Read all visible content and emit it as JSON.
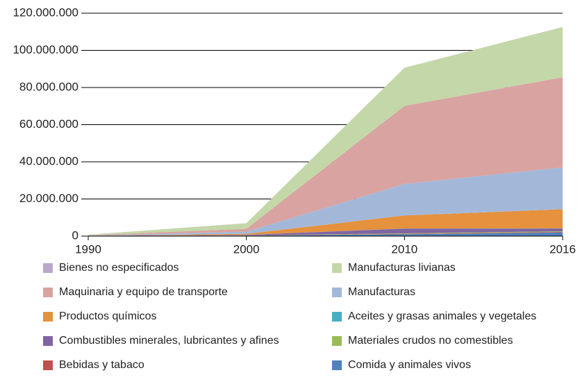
{
  "chart_data": {
    "type": "stacked_area",
    "categories": [
      "1990",
      "2000",
      "2010",
      "2016"
    ],
    "ylim": [
      0,
      120000000
    ],
    "yticks": [
      0,
      {
        "value": 20000000,
        "label": "20.000.000"
      },
      {
        "value": 40000000,
        "label": "40.000.000"
      },
      {
        "value": 60000000,
        "label": "60.000.000"
      },
      {
        "value": 80000000,
        "label": "80.000.000"
      },
      {
        "value": 100000000,
        "label": "100.000.000"
      },
      {
        "value": 120000000,
        "label": "120.000.000"
      }
    ],
    "grid": true,
    "legend": "bottom",
    "series": [
      {
        "name": "Comida y animales vivos",
        "color": "#4f81bd",
        "values": [
          100000,
          300000,
          1000000,
          2000000
        ]
      },
      {
        "name": "Bebidas y tabaco",
        "color": "#c0504d",
        "values": [
          20000,
          50000,
          200000,
          300000
        ]
      },
      {
        "name": "Materiales crudos no comestibles",
        "color": "#9bbb59",
        "values": [
          20000,
          50000,
          300000,
          300000
        ]
      },
      {
        "name": "Combustibles minerales, lubricantes y afines",
        "color": "#8064a2",
        "values": [
          50000,
          300000,
          2500000,
          1500000
        ]
      },
      {
        "name": "Aceites y grasas animales y vegetales",
        "color": "#4bacc6",
        "values": [
          10000,
          20000,
          100000,
          100000
        ]
      },
      {
        "name": "Productos químicos",
        "color": "#e5913d",
        "values": [
          50000,
          500000,
          7000000,
          10300000
        ]
      },
      {
        "name": "Manufacturas",
        "color": "#a3b8d8",
        "values": [
          100000,
          1200000,
          17000000,
          22500000
        ]
      },
      {
        "name": "Maquinaria y equipo de transporte",
        "color": "#d9a3a1",
        "values": [
          150000,
          1500000,
          42000000,
          48500000
        ]
      },
      {
        "name": "Manufacturas livianas",
        "color": "#c4d7a8",
        "values": [
          300000,
          3000000,
          20500000,
          27000000
        ]
      },
      {
        "name": "Bienes no especificados",
        "color": "#b8a9cc",
        "values": [
          10000,
          20000,
          50000,
          50000
        ]
      }
    ]
  }
}
